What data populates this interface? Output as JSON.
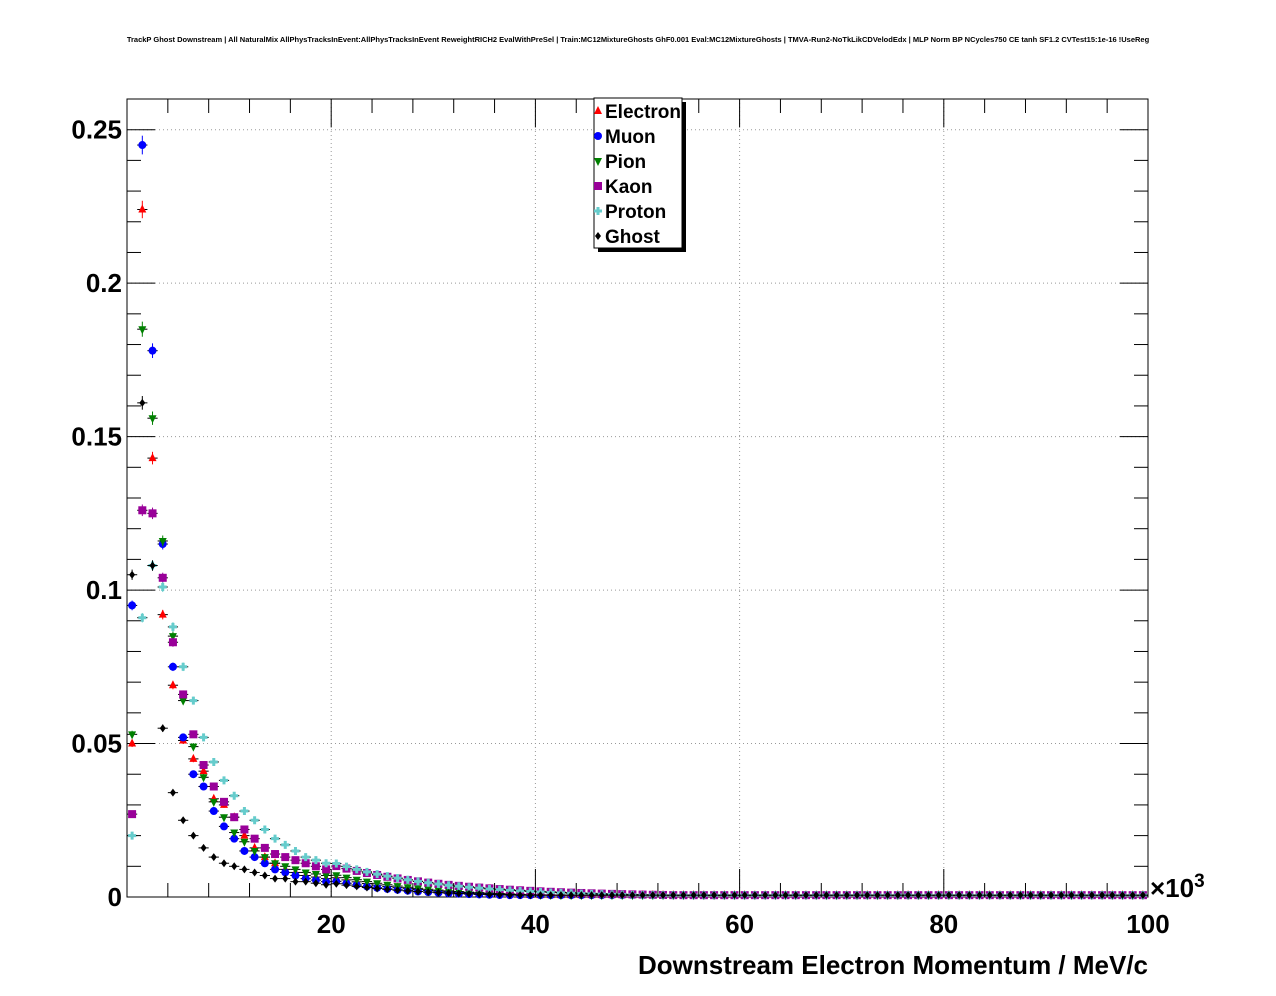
{
  "chart_data": {
    "type": "scatter",
    "title": "TrackP Ghost Downstream | All NaturalMix AllPhysTracksInEvent:AllPhysTracksInEvent ReweightRICH2 EvalWithPreSel | Train:MC12MixtureGhosts GhF0.001 Eval:MC12MixtureGhosts | TMVA-Run2-NoTkLikCDVelodEdx | MLP Norm BP NCycles750 CE tanh SF1.2 CVTest15:1e-16 !UseReg",
    "xlabel": "Downstream Electron Momentum / MeV/c",
    "ylabel": "",
    "x_multiplier": "×10",
    "x_multiplier_exp": "3",
    "xlim": [
      0,
      100
    ],
    "ylim": [
      0,
      0.26
    ],
    "x_ticks": [
      20,
      40,
      60,
      80,
      100
    ],
    "y_ticks": [
      0,
      0.05,
      0.1,
      0.15,
      0.2,
      0.25
    ],
    "x_tick_labels": [
      "20",
      "40",
      "60",
      "80",
      "100"
    ],
    "y_tick_labels": [
      "0",
      "0.05",
      "0.1",
      "0.15",
      "0.2",
      "0.25"
    ],
    "grid": true,
    "legend_position": "top-center",
    "bin_width": 1,
    "series": [
      {
        "name": "Electron",
        "color": "#ff0000",
        "marker": "triangle-up",
        "y": [
          0.05,
          0.224,
          0.143,
          0.092,
          0.069,
          0.051,
          0.045,
          0.041,
          0.032,
          0.03,
          0.026,
          0.02,
          0.016,
          0.013,
          0.011,
          0.009,
          0.008,
          0.007,
          0.0065,
          0.006
        ]
      },
      {
        "name": "Muon",
        "color": "#0000ff",
        "marker": "circle",
        "y": [
          0.095,
          0.245,
          0.178,
          0.115,
          0.075,
          0.052,
          0.04,
          0.036,
          0.028,
          0.023,
          0.019,
          0.015,
          0.013,
          0.011,
          0.009,
          0.008,
          0.007,
          0.006,
          0.0055,
          0.005
        ]
      },
      {
        "name": "Pion",
        "color": "#008000",
        "marker": "triangle-down",
        "y": [
          0.053,
          0.185,
          0.156,
          0.116,
          0.085,
          0.064,
          0.049,
          0.039,
          0.031,
          0.026,
          0.021,
          0.018,
          0.015,
          0.013,
          0.011,
          0.01,
          0.009,
          0.008,
          0.0075,
          0.007
        ]
      },
      {
        "name": "Kaon",
        "color": "#990099",
        "marker": "square",
        "y": [
          0.027,
          0.126,
          0.125,
          0.104,
          0.083,
          0.066,
          0.053,
          0.043,
          0.036,
          0.031,
          0.026,
          0.022,
          0.019,
          0.016,
          0.014,
          0.013,
          0.012,
          0.011,
          0.01,
          0.009
        ]
      },
      {
        "name": "Proton",
        "color": "#66cccc",
        "marker": "cross",
        "y": [
          0.02,
          0.091,
          0.108,
          0.101,
          0.088,
          0.075,
          0.064,
          0.052,
          0.044,
          0.038,
          0.033,
          0.028,
          0.025,
          0.022,
          0.019,
          0.017,
          0.015,
          0.013,
          0.012,
          0.011
        ]
      },
      {
        "name": "Ghost",
        "color": "#000000",
        "marker": "diamond",
        "y": [
          0.105,
          0.161,
          0.108,
          0.055,
          0.034,
          0.025,
          0.02,
          0.016,
          0.013,
          0.011,
          0.01,
          0.009,
          0.008,
          0.007,
          0.006,
          0.006,
          0.005,
          0.005,
          0.0045,
          0.004
        ]
      }
    ]
  }
}
